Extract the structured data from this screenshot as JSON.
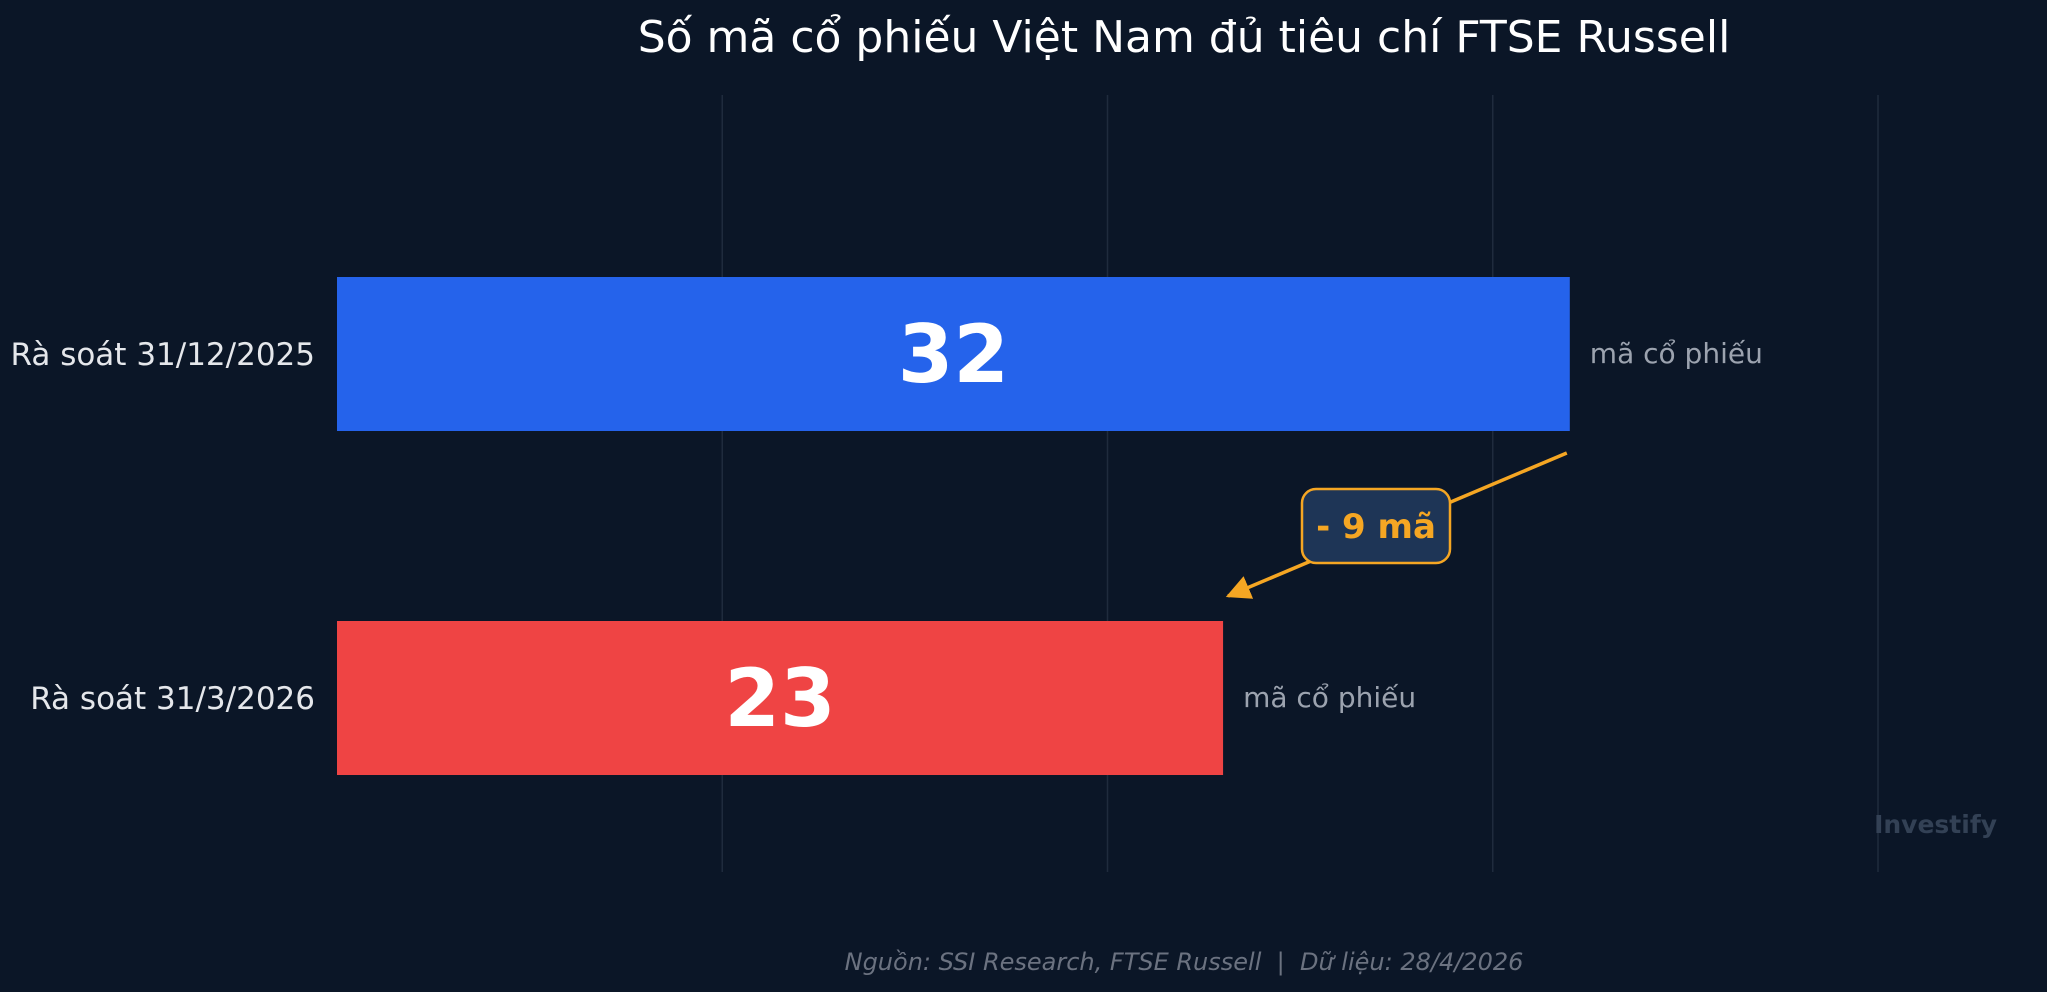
{
  "chart_data": {
    "type": "bar",
    "orientation": "horizontal",
    "title": "Số mã cổ phiếu Việt Nam đủ tiêu chí FTSE Russell",
    "categories": [
      "Rà soát 31/12/2025",
      "Rà soát 31/3/2026"
    ],
    "values": [
      32,
      23
    ],
    "value_unit_label": "mã cổ phiếu",
    "bar_colors": [
      "#2563eb",
      "#ef4444"
    ],
    "xlim": [
      0,
      40
    ],
    "grid": true,
    "grid_values": [
      10,
      20,
      30,
      40
    ],
    "annotation": {
      "text": "- 9 mã",
      "from_category": 0,
      "to_category": 1,
      "color": "#f5a623",
      "box_fill": "#1e3556"
    },
    "watermark": "Investify",
    "footer": "Nguồn: SSI Research, FTSE Russell  |  Dữ liệu: 28/4/2026"
  },
  "colors": {
    "background": "#0b1627",
    "title": "#ffffff",
    "category_label": "#e5e7eb",
    "unit_label": "#9ca3af",
    "grid": "#1f2b3d",
    "footer": "#6b7280",
    "watermark": "#334155"
  }
}
